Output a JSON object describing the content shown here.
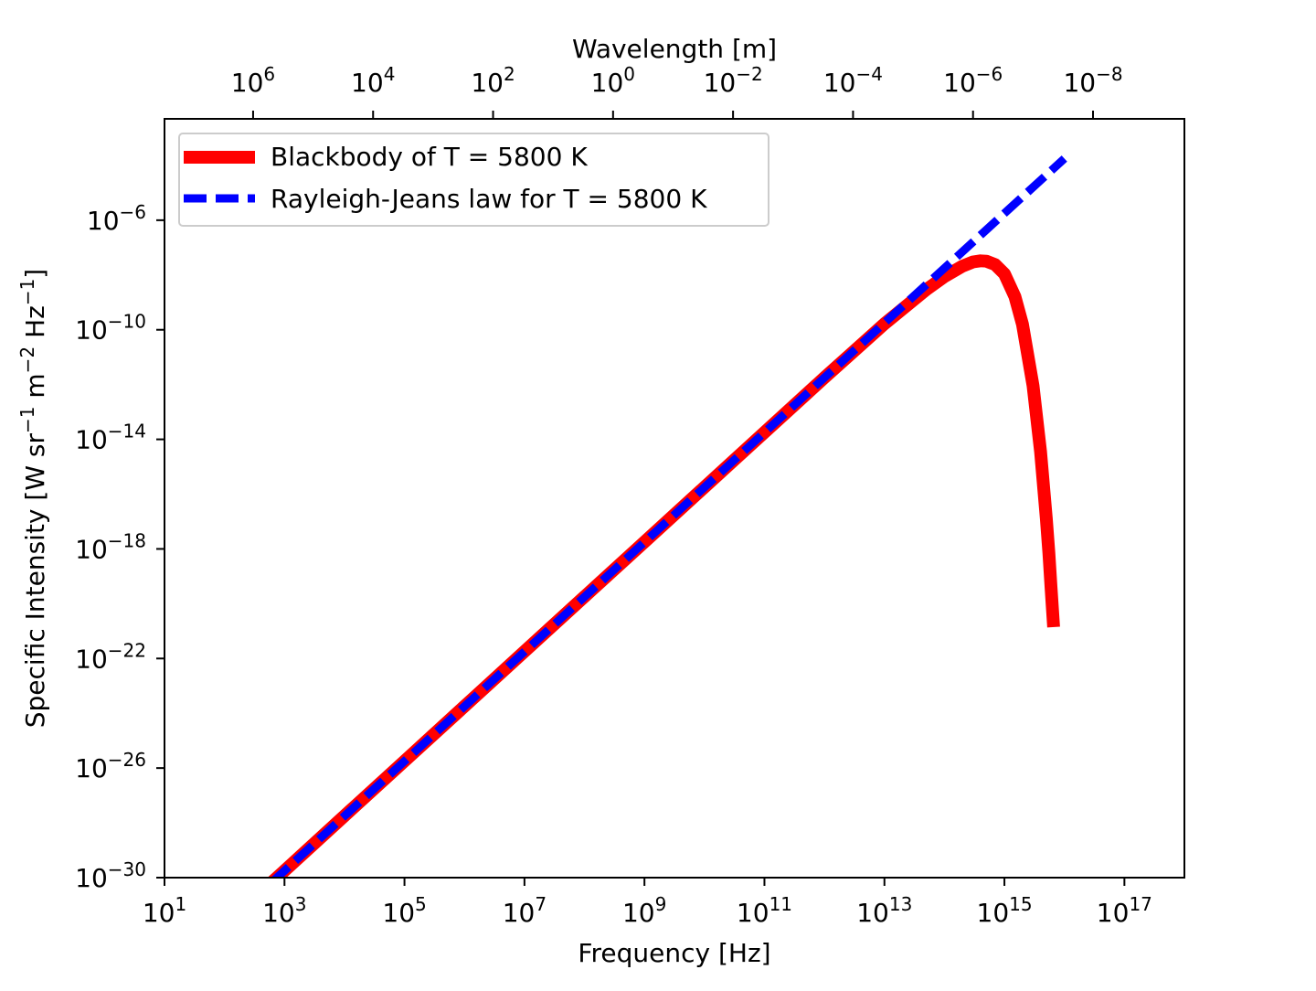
{
  "chart_data": {
    "type": "line",
    "xscale": "log",
    "yscale": "log",
    "xlabel": "Frequency [Hz]",
    "ylabel": "Specific Intensity [W sr⁻¹ m⁻² Hz⁻¹]",
    "ylabel_parts": [
      {
        "t": "Specific Intensity [W sr"
      },
      {
        "t": "−1",
        "sup": true
      },
      {
        "t": " m"
      },
      {
        "t": "−2",
        "sup": true
      },
      {
        "t": " Hz"
      },
      {
        "t": "−1",
        "sup": true
      },
      {
        "t": "]"
      }
    ],
    "secondary_xlabel": "Wavelength [m]",
    "xlim_log10": [
      1,
      18
    ],
    "ylim_log10": [
      -30,
      -2.3
    ],
    "x_ticks": [
      "1",
      "3",
      "5",
      "7",
      "9",
      "11",
      "13",
      "15",
      "17"
    ],
    "y_ticks": [
      "-6",
      "-10",
      "-14",
      "-18",
      "-22",
      "-26",
      "-30"
    ],
    "secondary_x_ticks": [
      "6",
      "4",
      "2",
      "0",
      "−2",
      "−4",
      "−6",
      "−8"
    ],
    "temperature_K": 5800,
    "grid": false,
    "legend_location": "upper left",
    "series": [
      {
        "name": "Blackbody of T = 5800 K",
        "color": "#ff0000",
        "style": "solid",
        "x": [
          100.0,
          1000.0,
          10000.0,
          100000.0,
          1000000.0,
          10000000.0,
          100000000.0,
          1000000000.0,
          10000000000.0,
          100000000000.0,
          1000000000000.0,
          10000000000000.0,
          50000000000000.0,
          100000000000000.0,
          200000000000000.0,
          300000000000000.0,
          400000000000000.0,
          500000000000000.0,
          700000000000000.0,
          1000000000000000.0,
          1500000000000000.0,
          2000000000000000.0,
          3000000000000000.0,
          4000000000000000.0,
          5000000000000000.0,
          5500000000000000.0,
          6000000000000000.0,
          6600000000000000.0
        ],
        "y": [
          1.8e-32,
          1.8e-30,
          1.8e-28,
          1.8e-26,
          1.8e-24,
          1.8e-22,
          1.8e-20,
          1.8e-18,
          1.8e-16,
          1.8e-14,
          1.78e-12,
          1.65e-10,
          2.95e-09,
          8.7e-09,
          2.1e-08,
          3e-08,
          3.3e-08,
          3.2e-08,
          2.4e-08,
          1.1e-08,
          1.6e-09,
          1.6e-10,
          9e-13,
          3.6e-15,
          1.3e-17,
          7.2e-19,
          3.8e-20,
          1.4e-21
        ]
      },
      {
        "name": "Rayleigh-Jeans law for T = 5800 K",
        "color": "#0000ff",
        "style": "dashed",
        "x": [
          100.0,
          10000.0,
          1000000.0,
          100000000.0,
          10000000000.0,
          1000000000000.0,
          100000000000000.0,
          1e+16
        ],
        "y": [
          1.78e-32,
          1.78e-28,
          1.78e-24,
          1.78e-20,
          1.78e-16,
          1.78e-12,
          1.78e-08,
          0.000178
        ]
      }
    ]
  }
}
